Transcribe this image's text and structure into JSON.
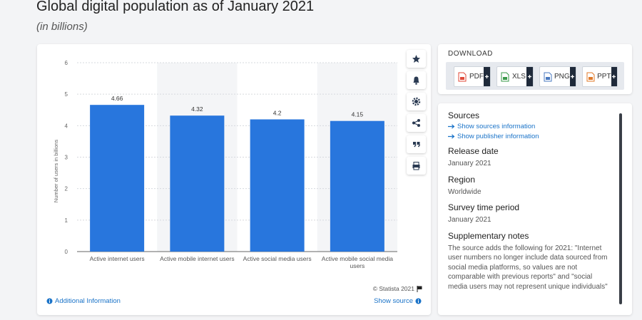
{
  "header": {
    "title": "Global digital population as of January 2021",
    "subtitle": "(in billions)"
  },
  "chart_data": {
    "type": "bar",
    "y_label": "Number of users in billions",
    "categories": [
      "Active internet users",
      "Active mobile internet users",
      "Active social media users",
      "Active mobile social media users"
    ],
    "values": [
      4.66,
      4.32,
      4.2,
      4.15
    ],
    "color": "#2876dd",
    "ylim": [
      0,
      6
    ],
    "yticks": [
      0,
      1,
      2,
      3,
      4,
      5,
      6
    ],
    "grid": true
  },
  "chart_footer": {
    "copyright": "© Statista 2021",
    "additional_info": "Additional Information",
    "show_source": "Show source"
  },
  "download": {
    "title": "DOWNLOAD",
    "buttons": [
      "PDF",
      "XLS",
      "PNG",
      "PPT"
    ]
  },
  "details": [
    {
      "title": "Sources",
      "links": [
        "Show sources information",
        "Show publisher information"
      ]
    },
    {
      "title": "Release date",
      "text": "January 2021"
    },
    {
      "title": "Region",
      "text": "Worldwide"
    },
    {
      "title": "Survey time period",
      "text": "January 2021"
    },
    {
      "title": "Supplementary notes",
      "text": "The source adds the following for 2021: \"Internet user numbers no longer include data sourced from social media platforms, so values are not comparable with previous reports\" and \"social media users may not represent unique individuals\""
    }
  ]
}
